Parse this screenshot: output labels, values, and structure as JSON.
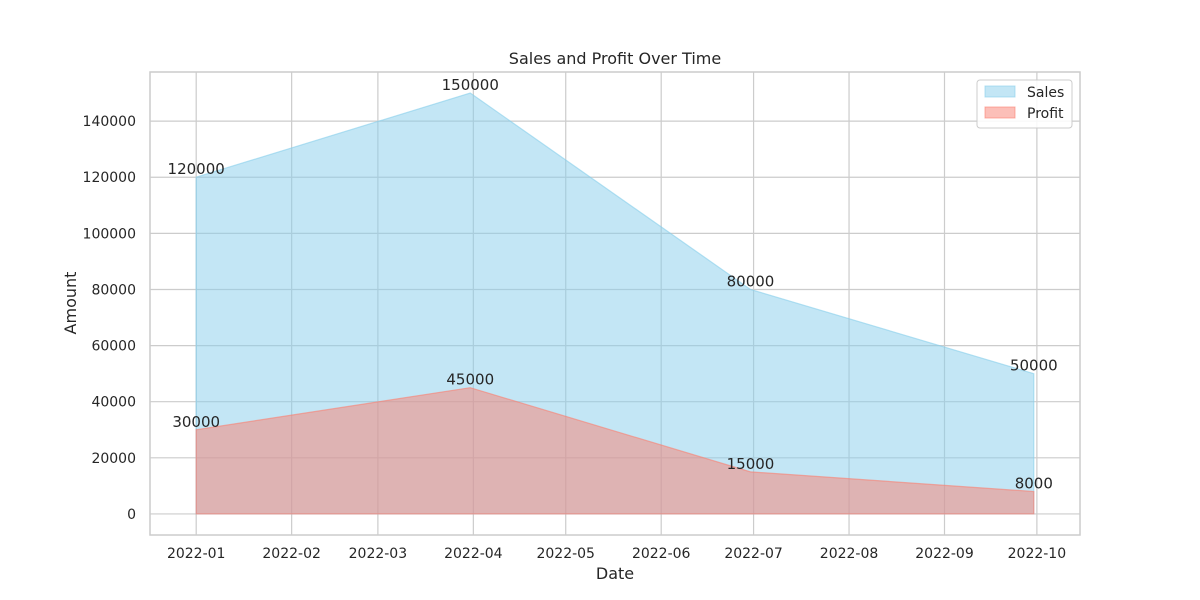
{
  "chart_data": {
    "type": "area",
    "title": "Sales and Profit Over Time",
    "xlabel": "Date",
    "ylabel": "Amount",
    "x_ticks": [
      "2022-01",
      "2022-02",
      "2022-03",
      "2022-04",
      "2022-05",
      "2022-06",
      "2022-07",
      "2022-08",
      "2022-09",
      "2022-10"
    ],
    "x_range": [
      "2021-12-17",
      "2022-10-15"
    ],
    "y_ticks": [
      0,
      20000,
      40000,
      60000,
      80000,
      100000,
      120000,
      140000
    ],
    "ylim": [
      -7500,
      157500
    ],
    "grid": true,
    "legend_position": "top-right",
    "series": [
      {
        "name": "Sales",
        "color": "#87ceeb",
        "edge_color": "#87ceeb",
        "points": [
          {
            "x": "2022-01-01",
            "y": 120000
          },
          {
            "x": "2022-03-31",
            "y": 150000
          },
          {
            "x": "2022-06-30",
            "y": 80000
          },
          {
            "x": "2022-09-30",
            "y": 50000
          }
        ],
        "labels": [
          "120000",
          "150000",
          "80000",
          "50000"
        ]
      },
      {
        "name": "Profit",
        "color": "#fa8072",
        "edge_color": "#fa8072",
        "points": [
          {
            "x": "2022-01-01",
            "y": 30000
          },
          {
            "x": "2022-03-31",
            "y": 45000
          },
          {
            "x": "2022-06-30",
            "y": 15000
          },
          {
            "x": "2022-09-30",
            "y": 8000
          }
        ],
        "labels": [
          "30000",
          "45000",
          "15000",
          "8000"
        ]
      }
    ]
  }
}
